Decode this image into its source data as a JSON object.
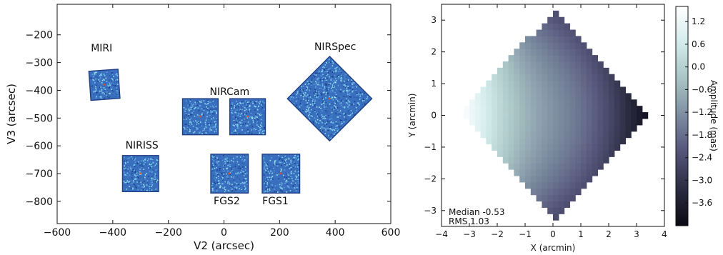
{
  "chart_data": [
    {
      "type": "scatter",
      "xlabel": "V2 (arcsec)",
      "ylabel": "V3 (arcsec)",
      "xlim": [
        -600,
        600
      ],
      "ylim": [
        -880,
        -90
      ],
      "xticks": [
        "−600",
        "−400",
        "−200",
        "0",
        "200",
        "400",
        "600"
      ],
      "xtick_values": [
        -600,
        -400,
        -200,
        0,
        200,
        400,
        600
      ],
      "yticks": [
        "−200",
        "−300",
        "−400",
        "−500",
        "−600",
        "−700",
        "−800"
      ],
      "ytick_values": [
        -200,
        -300,
        -400,
        -500,
        -600,
        -700,
        -800
      ],
      "grid": false,
      "apertures": [
        {
          "label": "MIRI",
          "center": [
            -430,
            -380
          ],
          "width": 105,
          "height": 105,
          "rotation": 4,
          "label_pos": [
            -440,
            -260
          ]
        },
        {
          "label": "NIRCam",
          "center": [
            -85,
            -495
          ],
          "width": 128,
          "height": 130,
          "rotation": 0
        },
        {
          "label": "NIRCam",
          "center": [
            85,
            -495
          ],
          "width": 128,
          "height": 130,
          "rotation": 0,
          "label_pos": [
            20,
            -417
          ]
        },
        {
          "label": "NIRSpec",
          "center": [
            380,
            -430
          ],
          "width": 215,
          "height": 215,
          "rotation": 45,
          "label_pos": [
            400,
            -255
          ]
        },
        {
          "label": "NIRISS",
          "center": [
            -300,
            -700
          ],
          "width": 130,
          "height": 130,
          "rotation": 0,
          "label_pos": [
            -295,
            -610
          ]
        },
        {
          "label": "FGS2",
          "center": [
            20,
            -700
          ],
          "width": 135,
          "height": 140,
          "rotation": 0,
          "label_pos": [
            10,
            -810
          ]
        },
        {
          "label": "FGS1",
          "center": [
            205,
            -700
          ],
          "width": 135,
          "height": 140,
          "rotation": 0,
          "label_pos": [
            185,
            -810
          ]
        }
      ]
    },
    {
      "type": "heatmap",
      "xlabel": "X (arcmin)",
      "ylabel": "Y (arcmin)",
      "xlim": [
        -4,
        4
      ],
      "ylim": [
        -3.5,
        3.5
      ],
      "xticks": [
        "−4",
        "−3",
        "−2",
        "−1",
        "0",
        "1",
        "2",
        "3",
        "4"
      ],
      "xtick_values": [
        -4,
        -3,
        -2,
        -1,
        0,
        1,
        2,
        3,
        4
      ],
      "yticks": [
        "3",
        "2",
        "1",
        "0",
        "−1",
        "−2",
        "−3"
      ],
      "ytick_values": [
        3,
        2,
        1,
        0,
        -1,
        -2,
        -3
      ],
      "colorbar": {
        "label": "Amplitude (mas)",
        "range": [
          -4.2,
          1.6
        ],
        "ticks": [
          "1.2",
          "0.6",
          "0.0",
          "−0.6",
          "−1.2",
          "−1.8",
          "−2.4",
          "−3.0",
          "−3.6"
        ],
        "tick_values": [
          1.2,
          0.6,
          0.0,
          -0.6,
          -1.2,
          -1.8,
          -2.4,
          -3.0,
          -3.6
        ],
        "colors": [
          "#0a0a14",
          "#2c2c42",
          "#55557a",
          "#7c8ca0",
          "#a8c4c4",
          "#d4ecec",
          "#ffffff"
        ]
      },
      "field_shape": {
        "type": "diamond",
        "center": [
          0.1,
          0.05
        ],
        "half_diagonal": 3.35,
        "rotation": 45
      },
      "annotations": [
        "Median -0.53",
        "RMS 1.03"
      ]
    }
  ]
}
